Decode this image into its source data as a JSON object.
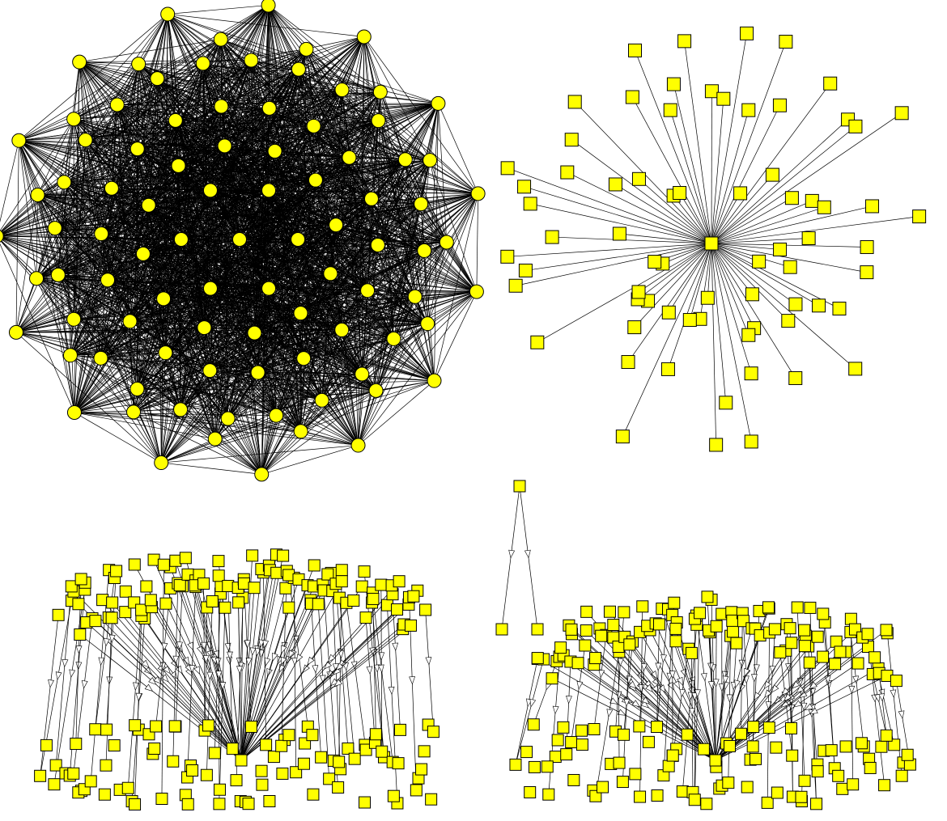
{
  "colors": {
    "node_fill": "#ffff00",
    "node_stroke": "#000000",
    "edge": "#000000",
    "arrow_fill": "#ffffff"
  },
  "panels": [
    {
      "id": "complete-graph",
      "layout": "radial-concentric",
      "node_shape": "circle",
      "edges": "all-to-all",
      "ring_node_counts": [
        6,
        12,
        18,
        24,
        30
      ]
    },
    {
      "id": "star-graph",
      "layout": "radial-star",
      "node_shape": "square",
      "edges": "hub-to-leaf",
      "leaf_count": 70
    },
    {
      "id": "directed-tree-left",
      "layout": "layered-directed",
      "node_shape": "square",
      "edges": "directed-arrows",
      "top_layer_count": 110,
      "bottom_layer_count": 90
    },
    {
      "id": "directed-tree-right",
      "layout": "layered-directed",
      "node_shape": "square",
      "edges": "directed-arrows",
      "top_layer_count": 105,
      "bottom_layer_count": 85,
      "extra_root": true
    }
  ]
}
